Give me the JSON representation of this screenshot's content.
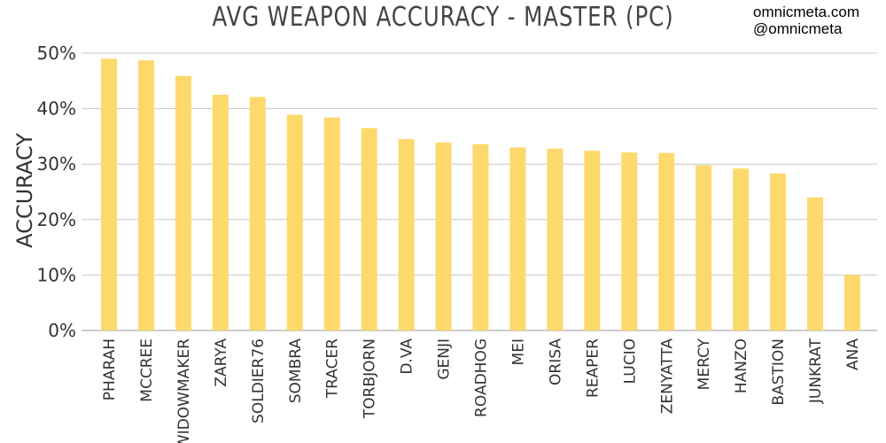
{
  "title": "AVG WEAPON ACCURACY - MASTER (PC)",
  "watermark": {
    "site": "omnicmeta.com",
    "handle": "@omnicmeta"
  },
  "colors": {
    "bar": "#FDD96B",
    "grid": "#c8c8c8",
    "text": "#333333"
  },
  "chart_data": {
    "type": "bar",
    "title": "AVG WEAPON ACCURACY - MASTER (PC)",
    "ylabel": "ACCURACY",
    "xlabel": "",
    "ylim": [
      0,
      50
    ],
    "grid": true,
    "yticks": [
      "0%",
      "10%",
      "20%",
      "30%",
      "40%",
      "50%"
    ],
    "categories": [
      "PHARAH",
      "MCCREE",
      "WIDOWMAKER",
      "ZARYA",
      "SOLDIER76",
      "SOMBRA",
      "TRACER",
      "TORBJORN",
      "D.VA",
      "GENJI",
      "ROADHOG",
      "MEI",
      "ORISA",
      "REAPER",
      "LUCIO",
      "ZENYATTA",
      "MERCY",
      "HANZO",
      "BASTION",
      "JUNKRAT",
      "ANA"
    ],
    "values": [
      49,
      48.7,
      45.9,
      42.5,
      42.1,
      38.9,
      38.4,
      36.5,
      34.5,
      33.9,
      33.6,
      33,
      32.8,
      32.4,
      32.1,
      32,
      29.8,
      29.2,
      28.3,
      24,
      10
    ]
  }
}
